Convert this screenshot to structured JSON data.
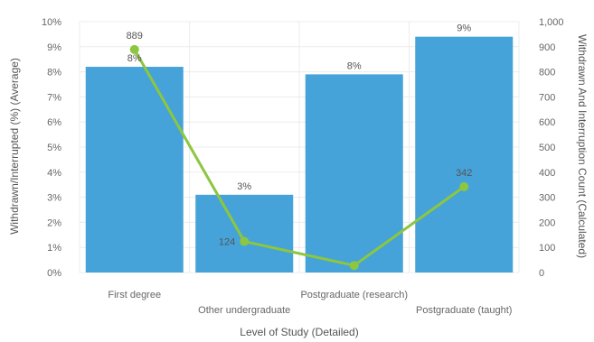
{
  "chart_data": {
    "type": "bar",
    "categories": [
      "First degree",
      "Other undergraduate",
      "Postgraduate (research)",
      "Postgraduate (taught)"
    ],
    "xlabel": "Level of Study (Detailed)",
    "ylabel": "Withdrawn/Interrupted (%) (Average)",
    "y2label": "Withdrawn And Interruption Count (Calculated)",
    "ylim": [
      0,
      10
    ],
    "y2lim": [
      0,
      1000
    ],
    "y_ticks": [
      "0%",
      "1%",
      "2%",
      "3%",
      "4%",
      "5%",
      "6%",
      "7%",
      "8%",
      "9%",
      "10%"
    ],
    "y2_ticks": [
      "0",
      "100",
      "200",
      "300",
      "400",
      "500",
      "600",
      "700",
      "800",
      "900",
      "1,000"
    ],
    "grid": true,
    "series": [
      {
        "type": "bar",
        "axis": "left",
        "values": [
          8.2,
          3.1,
          7.9,
          9.4
        ],
        "labels": [
          "8%",
          "3%",
          "8%",
          "9%"
        ],
        "color": "#45a3d9"
      },
      {
        "type": "line",
        "axis": "right",
        "values": [
          889,
          124,
          28,
          342
        ],
        "labels": [
          "889",
          "124",
          "",
          "342"
        ],
        "color": "#8dc63f"
      }
    ]
  }
}
